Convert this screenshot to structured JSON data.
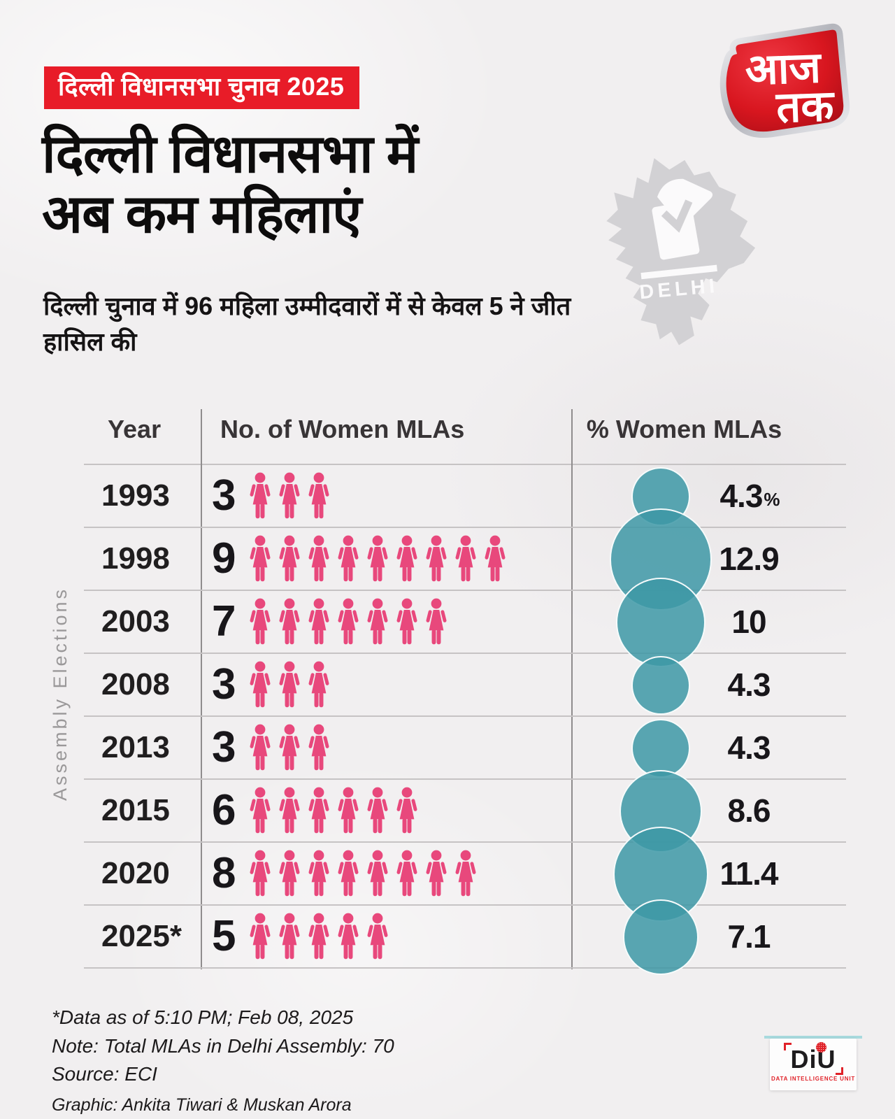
{
  "banner": {
    "label": "दिल्ली विधानसभा चुनाव 2025"
  },
  "brand": {
    "logo_line1": "आज",
    "logo_line2": "तक"
  },
  "title": {
    "line1": "दिल्ली विधानसभा में",
    "line2": "अब कम महिलाएं"
  },
  "subtitle": {
    "text": "दिल्ली चुनाव में 96 महिला उम्मीदवारों में से केवल 5 ने जीत हासिल की"
  },
  "map": {
    "label": "DELHI"
  },
  "side_label": "Assembly Elections",
  "table": {
    "columns": [
      "Year",
      "No. of Women MLAs",
      "% Women MLAs"
    ],
    "rows": [
      {
        "year": "1993",
        "count": 3,
        "percent": "4.3",
        "percent_suffix": "%",
        "percent_value": 4.3
      },
      {
        "year": "1998",
        "count": 9,
        "percent": "12.9",
        "percent_suffix": "",
        "percent_value": 12.9
      },
      {
        "year": "2003",
        "count": 7,
        "percent": "10",
        "percent_suffix": "",
        "percent_value": 10
      },
      {
        "year": "2008",
        "count": 3,
        "percent": "4.3",
        "percent_suffix": "",
        "percent_value": 4.3
      },
      {
        "year": "2013",
        "count": 3,
        "percent": "4.3",
        "percent_suffix": "",
        "percent_value": 4.3
      },
      {
        "year": "2015",
        "count": 6,
        "percent": "8.6",
        "percent_suffix": "",
        "percent_value": 8.6
      },
      {
        "year": "2020",
        "count": 8,
        "percent": "11.4",
        "percent_suffix": "",
        "percent_value": 11.4
      },
      {
        "year": "2025*",
        "count": 5,
        "percent": "7.1",
        "percent_suffix": "",
        "percent_value": 7.1
      }
    ]
  },
  "chart_data": {
    "type": "table",
    "title": "दिल्ली विधानसभा में अब कम महिलाएं",
    "subtitle": "दिल्ली चुनाव में 96 महिला उम्मीदवारों में से केवल 5 ने जीत हासिल की",
    "categories": [
      "1993",
      "1998",
      "2003",
      "2008",
      "2013",
      "2015",
      "2020",
      "2025*"
    ],
    "series": [
      {
        "name": "No. of Women MLAs",
        "values": [
          3,
          9,
          7,
          3,
          3,
          6,
          8,
          5
        ]
      },
      {
        "name": "% Women MLAs",
        "values": [
          4.3,
          12.9,
          10,
          4.3,
          4.3,
          8.6,
          11.4,
          7.1
        ]
      }
    ],
    "pictogram_unit": "woman-icon",
    "bubble_scale": "diameter proportional to sqrt(percent)",
    "axis_label_left": "Assembly Elections"
  },
  "footer": {
    "line1": "*Data as of 5:10 PM; Feb 08, 2025",
    "line2": "Note: Total MLAs in Delhi Assembly: 70",
    "line3": "Source: ECI",
    "line4": "Graphic: Ankita Tiwari & Muskan Arora"
  },
  "diu": {
    "name": "DiU",
    "subtext": "DATA INTELLIGENCE UNIT"
  },
  "colors": {
    "background": "#f1eff0",
    "banner_red": "#e81c28",
    "icon_pink": "#e8487c",
    "bubble_teal": "#3d98a6",
    "text_dark": "#18161a",
    "grid_line": "#c6c3c4",
    "map_gray": "#d2d1d4"
  }
}
